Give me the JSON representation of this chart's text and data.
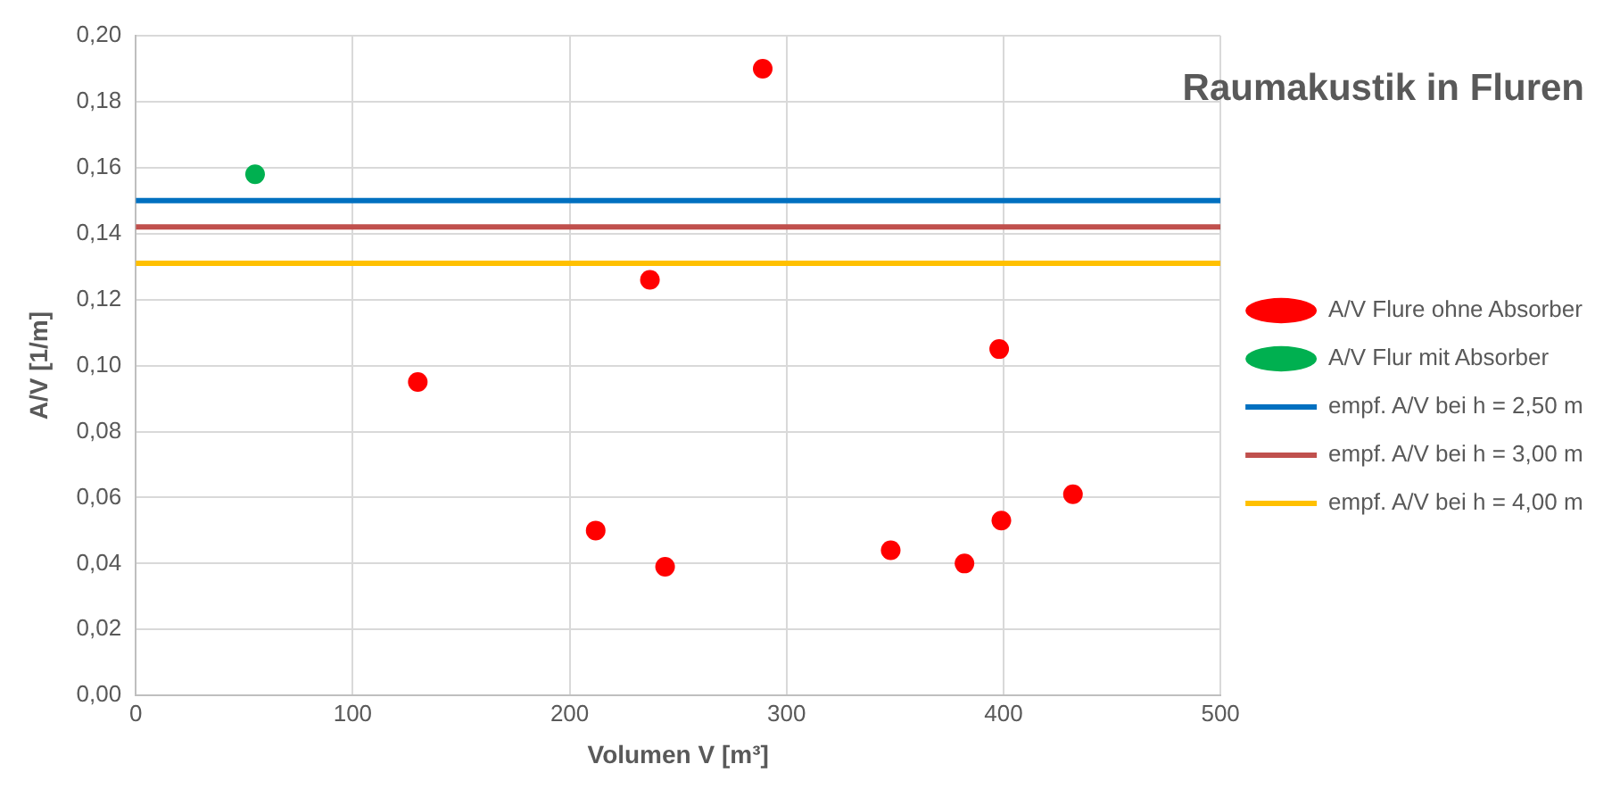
{
  "chart_data": {
    "type": "scatter",
    "title": "Raumakustik in Fluren",
    "xlabel": "Volumen V [m³]",
    "ylabel": "A/V [1/m]",
    "xlim": [
      0,
      500
    ],
    "xticks": [
      0,
      100,
      200,
      300,
      400,
      500
    ],
    "ylim": [
      0,
      0.2
    ],
    "yticks": [
      {
        "value": 0,
        "label": "0,00"
      },
      {
        "value": 0.02,
        "label": "0,02"
      },
      {
        "value": 0.04,
        "label": "0,04"
      },
      {
        "value": 0.06,
        "label": "0,06"
      },
      {
        "value": 0.08,
        "label": "0,08"
      },
      {
        "value": 0.1,
        "label": "0,10"
      },
      {
        "value": 0.12,
        "label": "0,12"
      },
      {
        "value": 0.14,
        "label": "0,14"
      },
      {
        "value": 0.16,
        "label": "0,16"
      },
      {
        "value": 0.18,
        "label": "0,18"
      },
      {
        "value": 0.2,
        "label": "0,20"
      }
    ],
    "grid": true,
    "legend": "right",
    "marker": "circle",
    "series": [
      {
        "name": "A/V Flure ohne Absorber",
        "color": "#ff0000",
        "x": [
          130,
          237,
          289,
          212,
          244,
          348,
          382,
          398,
          399,
          432
        ],
        "values": [
          0.095,
          0.126,
          0.19,
          0.05,
          0.039,
          0.044,
          0.04,
          0.105,
          0.053,
          0.061
        ]
      },
      {
        "name": "A/V Flur mit Absorber",
        "color": "#00b050",
        "x": [
          55
        ],
        "values": [
          0.158
        ]
      },
      {
        "name": "empf. A/V bei h = 2,50 m",
        "type": "line",
        "marker": "none",
        "color": "#0070c0",
        "x": [
          0,
          500
        ],
        "values": [
          0.15,
          0.15
        ]
      },
      {
        "name": "empf. A/V bei h = 3,00 m",
        "type": "line",
        "marker": "none",
        "color": "#c0504d",
        "x": [
          0,
          500
        ],
        "values": [
          0.142,
          0.142
        ]
      },
      {
        "name": "empf. A/V bei h = 4,00 m",
        "type": "line",
        "marker": "none",
        "color": "#ffc000",
        "x": [
          0,
          500
        ],
        "values": [
          0.131,
          0.131
        ]
      }
    ]
  }
}
